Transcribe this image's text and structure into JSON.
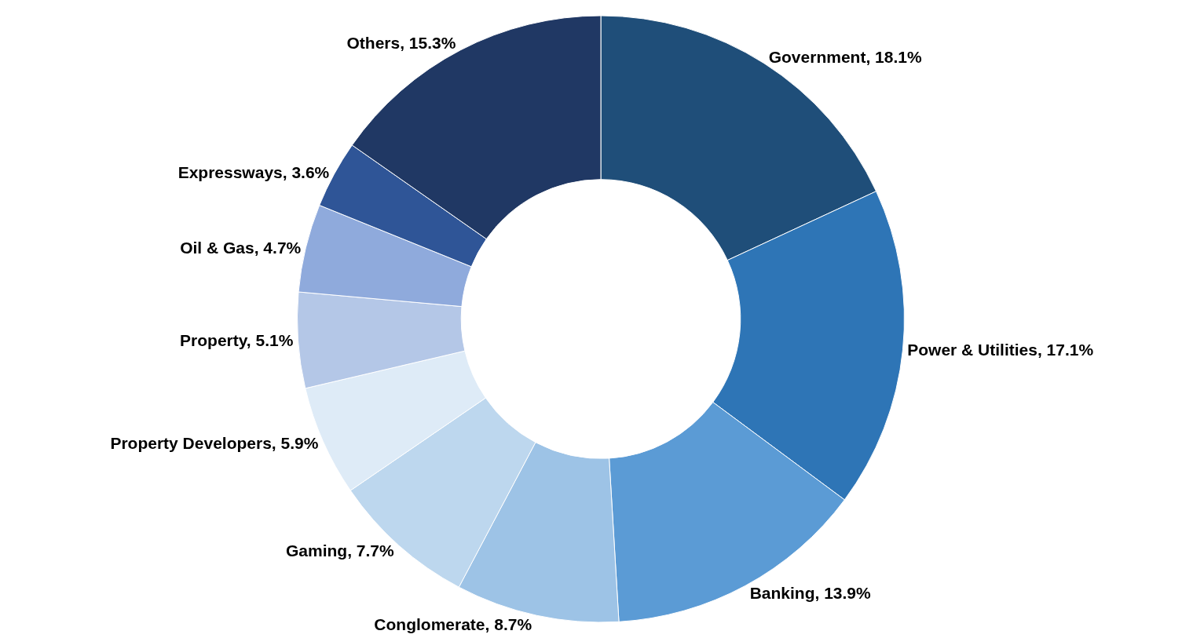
{
  "chart_data": {
    "type": "donut",
    "categories": [
      "Government",
      "Power & Utilities",
      "Banking",
      "Conglomerate",
      "Gaming",
      "Property Developers",
      "Property",
      "Oil & Gas",
      "Expressways",
      "Others"
    ],
    "values": [
      18.1,
      17.1,
      13.9,
      8.7,
      7.7,
      5.9,
      5.1,
      4.7,
      3.6,
      15.3
    ],
    "value_labels": [
      "18.1%",
      "17.1%",
      "13.9%",
      "8.7%",
      "7.7%",
      "5.9%",
      "5.1%",
      "4.7%",
      "3.6%",
      "15.3%"
    ],
    "colors": [
      "#1f4e79",
      "#2e75b6",
      "#5b9bd5",
      "#9dc3e6",
      "#bdd7ee",
      "#deebf7",
      "#b4c7e7",
      "#8faadc",
      "#2f5597",
      "#203864"
    ],
    "legend": false
  }
}
